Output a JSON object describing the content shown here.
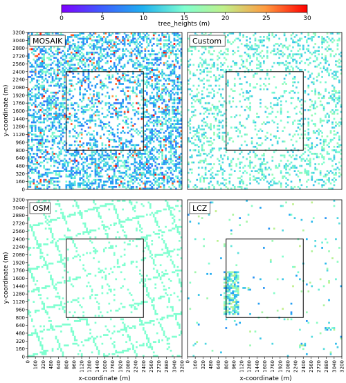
{
  "chart_data": {
    "type": "heatmap",
    "colorbar": {
      "label": "tree_heights (m)",
      "range": [
        0,
        30
      ],
      "ticks": [
        0,
        5,
        10,
        15,
        20,
        25,
        30
      ],
      "colormap": "rainbow",
      "placement": "top"
    },
    "x_axis": {
      "label": "x-coordinate (m)",
      "range": [
        0,
        3200
      ],
      "ticks": [
        "0",
        "160",
        "320",
        "480",
        "640",
        "800",
        "960",
        "1120",
        "1280",
        "1440",
        "1600",
        "1760",
        "1920",
        "2080",
        "2240",
        "2400",
        "2560",
        "2720",
        "2880",
        "3040",
        "3200"
      ]
    },
    "y_axis": {
      "label": "y-coordinate (m)",
      "range": [
        0,
        3200
      ],
      "ticks": [
        "0",
        "160",
        "320",
        "480",
        "640",
        "800",
        "960",
        "1120",
        "1280",
        "1440",
        "1600",
        "1760",
        "1920",
        "2080",
        "2240",
        "2400",
        "2560",
        "2720",
        "2880",
        "3040",
        "3200"
      ]
    },
    "panels": [
      {
        "title": "MOSAIK",
        "density": 0.45,
        "mean_height": 11,
        "spread": 5
      },
      {
        "title": "Custom",
        "density": 0.22,
        "mean_height": 14,
        "spread": 3
      },
      {
        "title": "OSM",
        "density": 0.2,
        "mean_height": 15,
        "spread": 0
      },
      {
        "title": "LCZ",
        "density": 0.05,
        "mean_height": 14,
        "spread": 6
      }
    ],
    "inner_domain": {
      "x": [
        800,
        2400
      ],
      "y": [
        800,
        2400
      ]
    }
  }
}
